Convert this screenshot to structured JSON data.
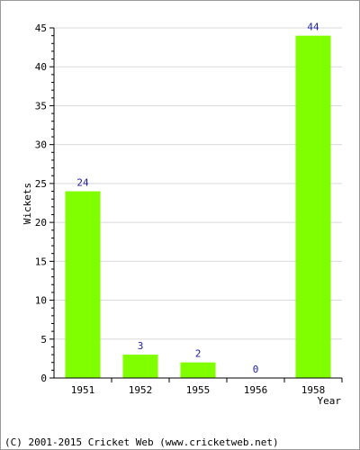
{
  "chart_data": {
    "type": "bar",
    "categories": [
      "1951",
      "1952",
      "1955",
      "1956",
      "1958"
    ],
    "values": [
      24,
      3,
      2,
      0,
      44
    ],
    "xlabel": "Year",
    "ylabel": "Wickets",
    "ylim": [
      0,
      45
    ],
    "yticks": [
      0,
      5,
      10,
      15,
      20,
      25,
      30,
      35,
      40,
      45
    ],
    "grid": true,
    "bar_color": "#80ff00",
    "label_color": "#1a1aa6"
  },
  "footer": {
    "copyright": "(C) 2001-2015 Cricket Web (www.cricketweb.net)"
  }
}
